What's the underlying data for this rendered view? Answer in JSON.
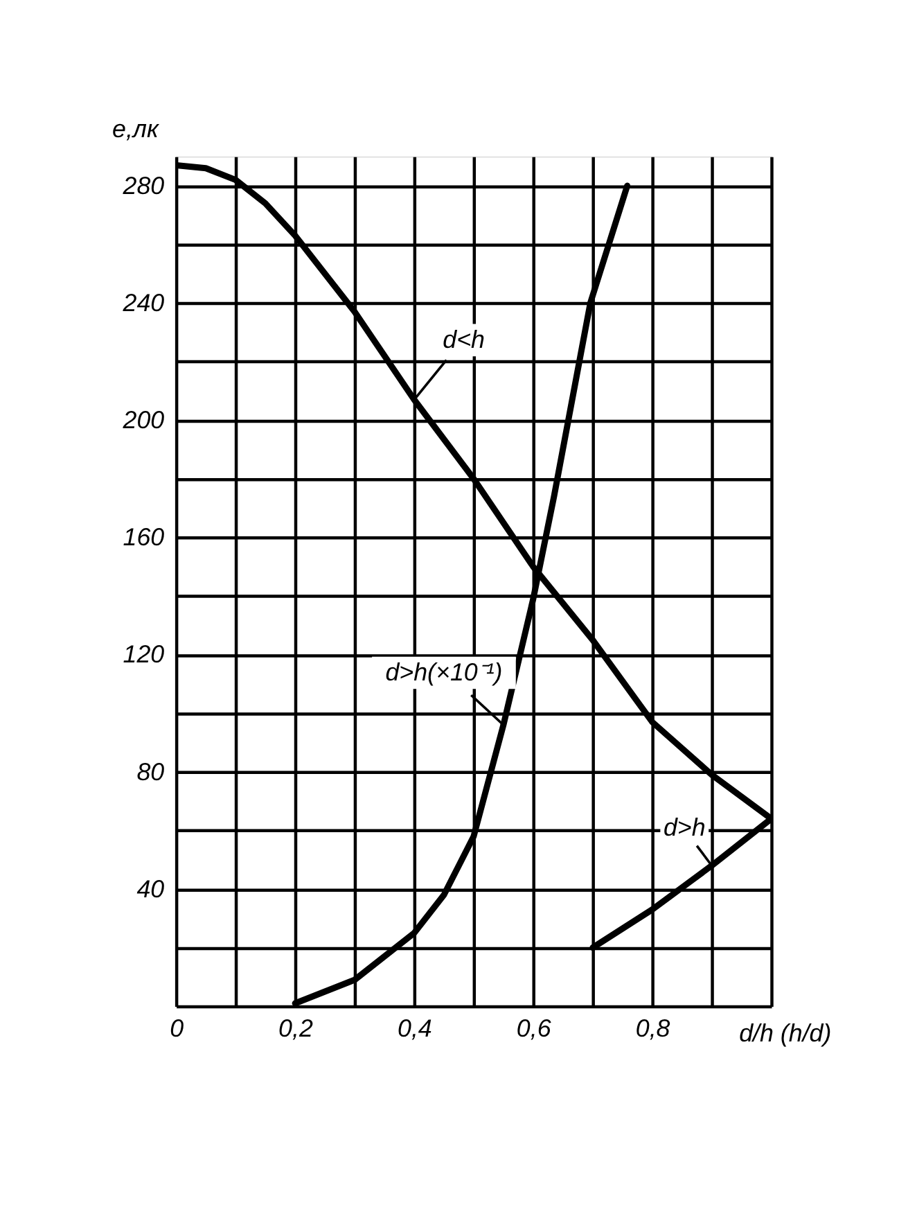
{
  "chart_data": {
    "type": "line",
    "xlabel": "d/h   (h/d)",
    "ylabel": "е,лк",
    "xlim": [
      0,
      1.0
    ],
    "ylim": [
      0,
      290
    ],
    "xticks": [
      {
        "value": 0,
        "label": "0"
      },
      {
        "value": 0.1,
        "label": null
      },
      {
        "value": 0.2,
        "label": "0,2"
      },
      {
        "value": 0.3,
        "label": null
      },
      {
        "value": 0.4,
        "label": "0,4"
      },
      {
        "value": 0.5,
        "label": null
      },
      {
        "value": 0.6,
        "label": "0,6"
      },
      {
        "value": 0.7,
        "label": null
      },
      {
        "value": 0.8,
        "label": "0,8"
      },
      {
        "value": 0.9,
        "label": null
      },
      {
        "value": 1.0,
        "label": null
      }
    ],
    "yticks": [
      {
        "value": 0,
        "label": null
      },
      {
        "value": 20,
        "label": null
      },
      40,
      {
        "value": 60,
        "label": null
      },
      80,
      {
        "value": 100,
        "label": null
      },
      120,
      {
        "value": 140,
        "label": null
      },
      160,
      {
        "value": 180,
        "label": null
      },
      200,
      {
        "value": 220,
        "label": null
      },
      240,
      {
        "value": 260,
        "label": null
      },
      280
    ],
    "grid": true,
    "marker": "none",
    "line_style": "solid",
    "series": [
      {
        "name": "d<h",
        "color": "#000000",
        "x": [
          0,
          0.05,
          0.1,
          0.15,
          0.2,
          0.3,
          0.4,
          0.5,
          0.6,
          0.7,
          0.8,
          0.9,
          1.0
        ],
        "values": [
          287,
          286,
          282,
          274,
          263,
          237,
          207,
          180,
          150,
          125,
          97,
          79,
          64
        ]
      },
      {
        "name": "d>h(×10⁻¹)",
        "color": "#000000",
        "x": [
          0.2,
          0.3,
          0.4,
          0.45,
          0.5,
          0.55,
          0.6,
          0.635,
          0.696,
          0.758
        ],
        "values": [
          1,
          9,
          25,
          38,
          58,
          96,
          139,
          174,
          240,
          280
        ]
      },
      {
        "name": "d>h",
        "color": "#000000",
        "x": [
          0.7,
          0.8,
          0.9,
          1.0
        ],
        "values": [
          20,
          33,
          48,
          64
        ]
      }
    ]
  }
}
